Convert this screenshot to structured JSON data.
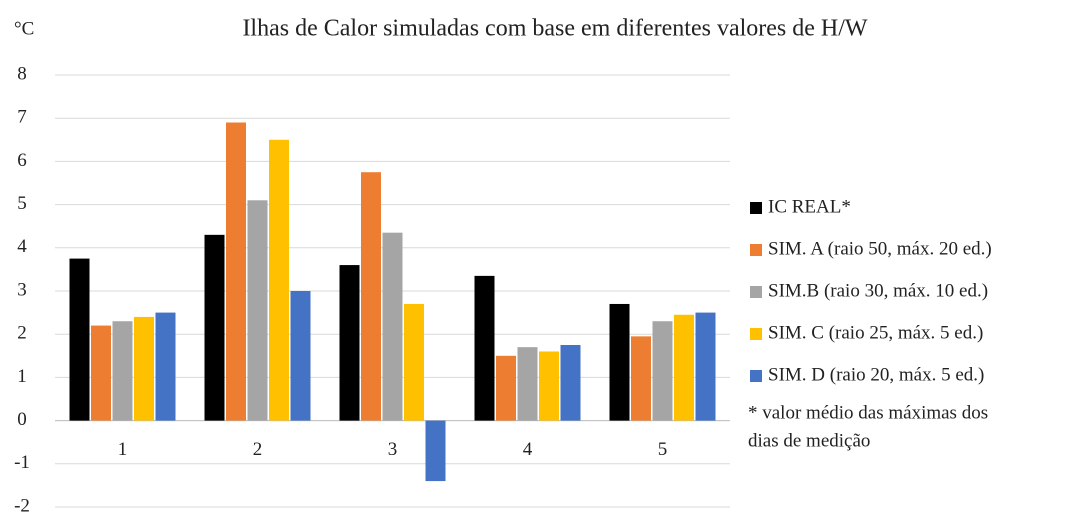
{
  "chart_data": {
    "type": "bar",
    "title": "Ilhas de Calor simuladas com base em diferentes valores de H/W",
    "y_label": "°C",
    "categories": [
      "1",
      "2",
      "3",
      "4",
      "5"
    ],
    "series": [
      {
        "name": "IC REAL*",
        "color": "#000000",
        "values": [
          3.75,
          4.3,
          3.6,
          3.35,
          2.7
        ]
      },
      {
        "name": "SIM. A  (raio 50, máx. 20 ed.)",
        "color": "#ed7d31",
        "values": [
          2.2,
          6.9,
          5.75,
          1.5,
          1.95
        ]
      },
      {
        "name": "SIM.B (raio 30, máx. 10 ed.)",
        "color": "#a5a5a5",
        "values": [
          2.3,
          5.1,
          4.35,
          1.7,
          2.3
        ]
      },
      {
        "name": "SIM. C (raio 25, máx. 5 ed.)",
        "color": "#ffc000",
        "values": [
          2.4,
          6.5,
          2.7,
          1.6,
          2.45
        ]
      },
      {
        "name": "SIM. D (raio 20, máx. 5 ed.)",
        "color": "#4472c4",
        "values": [
          2.5,
          3.0,
          -1.4,
          1.75,
          2.5
        ]
      }
    ],
    "note": [
      "* valor médio das máximas dos",
      "dias de medição"
    ],
    "ylim": [
      -2,
      8
    ],
    "yticks": [
      -2,
      -1,
      0,
      1,
      2,
      3,
      4,
      5,
      6,
      7,
      8
    ],
    "grid": true,
    "legend": "right"
  }
}
